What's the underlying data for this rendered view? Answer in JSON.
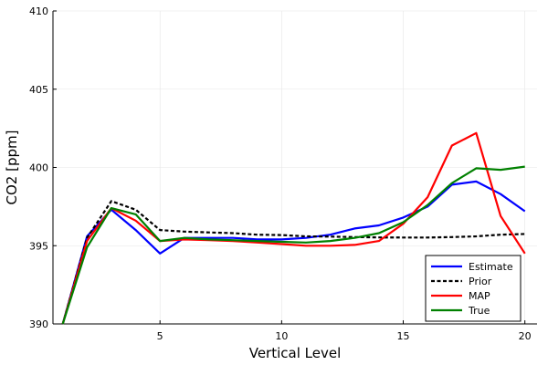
{
  "chart_data": {
    "type": "line",
    "title": "",
    "xlabel": "Vertical Level",
    "ylabel": "CO2 [ppm]",
    "xlim": [
      0.6,
      20.5
    ],
    "ylim": [
      390,
      410
    ],
    "xticks": [
      5,
      10,
      15,
      20
    ],
    "yticks": [
      390,
      395,
      400,
      405,
      410
    ],
    "grid": true,
    "legend_position": "bottom-right",
    "x": [
      1,
      2,
      3,
      4,
      5,
      6,
      7,
      8,
      9,
      10,
      11,
      12,
      13,
      14,
      15,
      16,
      17,
      18,
      19,
      20
    ],
    "series": [
      {
        "name": "Estimate",
        "color": "#0000ff",
        "style": "solid",
        "values": [
          390.0,
          395.6,
          397.3,
          396.0,
          394.5,
          395.5,
          395.5,
          395.5,
          395.4,
          395.4,
          395.5,
          395.7,
          396.1,
          396.3,
          396.8,
          397.5,
          398.9,
          399.1,
          398.3,
          397.2
        ]
      },
      {
        "name": "Prior",
        "color": "#000000",
        "style": "dashed",
        "values": [
          390.0,
          395.5,
          397.85,
          397.3,
          396.0,
          395.9,
          395.85,
          395.8,
          395.7,
          395.68,
          395.6,
          395.58,
          395.55,
          395.53,
          395.52,
          395.52,
          395.55,
          395.6,
          395.7,
          395.75
        ]
      },
      {
        "name": "MAP",
        "color": "#ff0000",
        "style": "solid",
        "values": [
          390.0,
          395.3,
          397.4,
          396.6,
          395.3,
          395.4,
          395.35,
          395.3,
          395.2,
          395.1,
          395.0,
          395.0,
          395.05,
          395.3,
          396.4,
          398.1,
          401.4,
          402.2,
          396.9,
          394.5
        ]
      },
      {
        "name": "True",
        "color": "#008000",
        "style": "solid",
        "values": [
          390.0,
          394.9,
          397.4,
          397.0,
          395.3,
          395.5,
          395.4,
          395.35,
          395.3,
          395.25,
          395.2,
          395.3,
          395.5,
          395.8,
          396.5,
          397.6,
          399.0,
          399.95,
          399.85,
          400.05
        ]
      }
    ]
  }
}
